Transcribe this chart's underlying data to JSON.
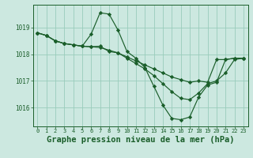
{
  "background_color": "#cce8e0",
  "grid_color": "#99ccbb",
  "line_color": "#1a5e2a",
  "xlabel": "Graphe pression niveau de la mer (hPa)",
  "xlabel_fontsize": 7.5,
  "ylim": [
    1015.3,
    1019.85
  ],
  "xlim": [
    -0.5,
    23.5
  ],
  "yticks": [
    1016,
    1017,
    1018,
    1019
  ],
  "xticks": [
    0,
    1,
    2,
    3,
    4,
    5,
    6,
    7,
    8,
    9,
    10,
    11,
    12,
    13,
    14,
    15,
    16,
    17,
    18,
    19,
    20,
    21,
    22,
    23
  ],
  "lines": [
    {
      "x": [
        0,
        1,
        2,
        3,
        4,
        5,
        6,
        7,
        8,
        9,
        10,
        11,
        12,
        13,
        14,
        15,
        16,
        17,
        18,
        19,
        20,
        21,
        22,
        23
      ],
      "y": [
        1018.8,
        1018.7,
        1018.5,
        1018.4,
        1018.35,
        1018.3,
        1018.75,
        1019.55,
        1019.5,
        1018.9,
        1018.1,
        1017.85,
        1017.5,
        1016.8,
        1016.1,
        1015.6,
        1015.55,
        1015.65,
        1016.4,
        1016.85,
        1016.95,
        1017.8,
        1017.85,
        1017.85
      ]
    },
    {
      "x": [
        0,
        1,
        2,
        3,
        4,
        5,
        6,
        7,
        8,
        9,
        10,
        11,
        12,
        13,
        14,
        15,
        16,
        17,
        18,
        19,
        20,
        21,
        22,
        23
      ],
      "y": [
        1018.8,
        1018.7,
        1018.5,
        1018.4,
        1018.35,
        1018.3,
        1018.28,
        1018.25,
        1018.15,
        1018.05,
        1017.9,
        1017.75,
        1017.6,
        1017.45,
        1017.3,
        1017.15,
        1017.05,
        1016.95,
        1017.0,
        1016.95,
        1017.8,
        1017.8,
        1017.85,
        1017.85
      ]
    },
    {
      "x": [
        0,
        1,
        2,
        3,
        4,
        5,
        6,
        7,
        8,
        9,
        10,
        11,
        12,
        13,
        14,
        15,
        16,
        17,
        18,
        19,
        20,
        21,
        22,
        23
      ],
      "y": [
        1018.8,
        1018.7,
        1018.5,
        1018.4,
        1018.35,
        1018.3,
        1018.28,
        1018.3,
        1018.1,
        1018.05,
        1017.85,
        1017.65,
        1017.45,
        1017.2,
        1016.9,
        1016.6,
        1016.35,
        1016.3,
        1016.55,
        1016.9,
        1017.0,
        1017.3,
        1017.8,
        1017.85
      ]
    }
  ]
}
